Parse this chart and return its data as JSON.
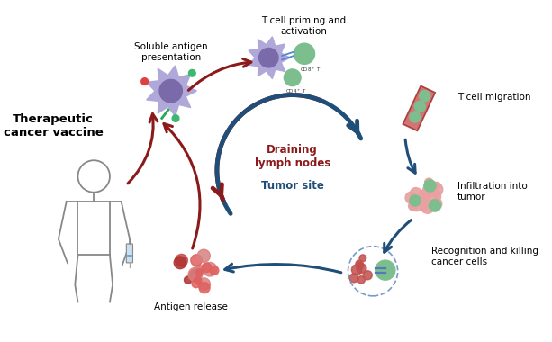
{
  "background_color": "#ffffff",
  "border_color": "#555555",
  "fig_width": 6.13,
  "fig_height": 3.8,
  "title_text": "Therapeutic\ncancer vaccine",
  "labels": {
    "soluble_antigen": "Soluble antigen\npresentation",
    "t_cell_priming": "T cell priming and\nactivation",
    "t_cell_migration": "T cell migration",
    "infiltration": "Infiltration into\ntumor",
    "recognition": "Recognition and killing\ncancer cells",
    "antigen_release": "Antigen release",
    "draining": "Draining\nlymph nodes",
    "tumor_site": "Tumor site"
  },
  "dark_red": "#8B1A1A",
  "blue_col": "#1F4E79",
  "purple_cell": "#b0a8d8",
  "purple_inner": "#7a6aaa",
  "green_cell": "#7dbe8e",
  "pink_tumor": "#e8a0a0",
  "red_cancer": "#c0504d",
  "vessel_color": "#d06060",
  "vessel_edge": "#a03030",
  "green_tag": "#3db870",
  "blue_dash": "#7799cc",
  "connector_blue": "#5577bb",
  "syringe_fill": "#c8e0f0",
  "human_color": "#888888",
  "border_lw": 2.0,
  "arc_lw": 3.5,
  "arrow_lw": 2.2
}
